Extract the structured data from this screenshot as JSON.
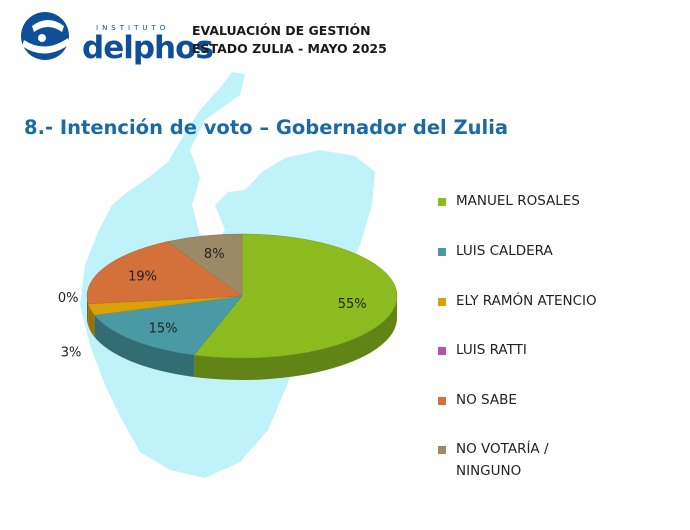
{
  "brand": {
    "instituto": "INSTITUTO",
    "name": "delphos"
  },
  "header": {
    "line1": "EVALUACIÓN DE GESTIÓN",
    "line2": "ESTADO ZULIA - MAYO 2025"
  },
  "colors": {
    "brand_blue": "#0f4f9a",
    "title_blue": "#1b6aa8",
    "map_bg": "#bff3f9"
  },
  "chart_data": {
    "type": "pie",
    "title": "8.- Intención de voto – Gobernador del Zulia",
    "legend_position": "right",
    "slices": [
      {
        "label": "MANUEL ROSALES",
        "value": 55,
        "display": "55%",
        "color": "#8cbb1f"
      },
      {
        "label": "LUIS CALDERA",
        "value": 15,
        "display": "15%",
        "color": "#4a9aa6"
      },
      {
        "label": "ELY RAMÓN ATENCIO",
        "value": 3,
        "display": "3%",
        "color": "#d9a106"
      },
      {
        "label": "LUIS RATTI",
        "value": 0,
        "display": "0%",
        "color": "#b452b5"
      },
      {
        "label": "NO SABE",
        "value": 19,
        "display": "19%",
        "color": "#d4703a"
      },
      {
        "label": "NO VOTARÍA / NINGUNO",
        "value": 8,
        "display": "8%",
        "color": "#9c8a67"
      }
    ]
  }
}
